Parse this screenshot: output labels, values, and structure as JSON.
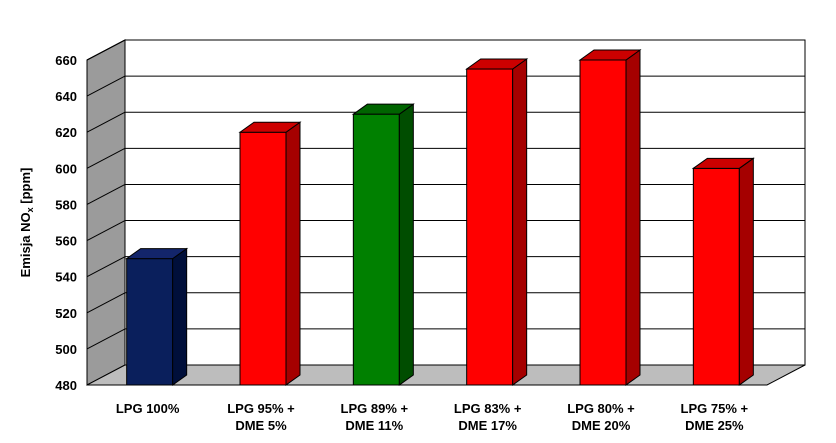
{
  "chart_data": {
    "type": "bar",
    "ylabel": "Emisja NO",
    "ylabel_sub": "x",
    "ylabel_unit": " [ppm]",
    "ylim": [
      480,
      660
    ],
    "yticks": [
      480,
      500,
      520,
      540,
      560,
      580,
      600,
      620,
      640,
      660
    ],
    "grid": true,
    "style": "3d",
    "categories": [
      [
        "LPG 100%"
      ],
      [
        "LPG 95% +",
        "DME 5%"
      ],
      [
        "LPG 89% +",
        "DME 11%"
      ],
      [
        "LPG 83% +",
        "DME 17%"
      ],
      [
        "LPG 80% +",
        "DME 20%"
      ],
      [
        "LPG 75% +",
        "DME 25%"
      ]
    ],
    "values": [
      550,
      620,
      630,
      655,
      660,
      600
    ],
    "colors": [
      "#0a1f5c",
      "#ff0000",
      "#008000",
      "#ff0000",
      "#ff0000",
      "#ff0000"
    ],
    "colors_top": [
      "#13256b",
      "#cc0000",
      "#006400",
      "#cc0000",
      "#cc0000",
      "#cc0000"
    ],
    "colors_side": [
      "#000f3a",
      "#a50000",
      "#004d00",
      "#a50000",
      "#a50000",
      "#a50000"
    ],
    "wall_color": "#ffffff",
    "side_wall_color": "#9b9b9b",
    "floor_color": "#bdbdbd"
  }
}
